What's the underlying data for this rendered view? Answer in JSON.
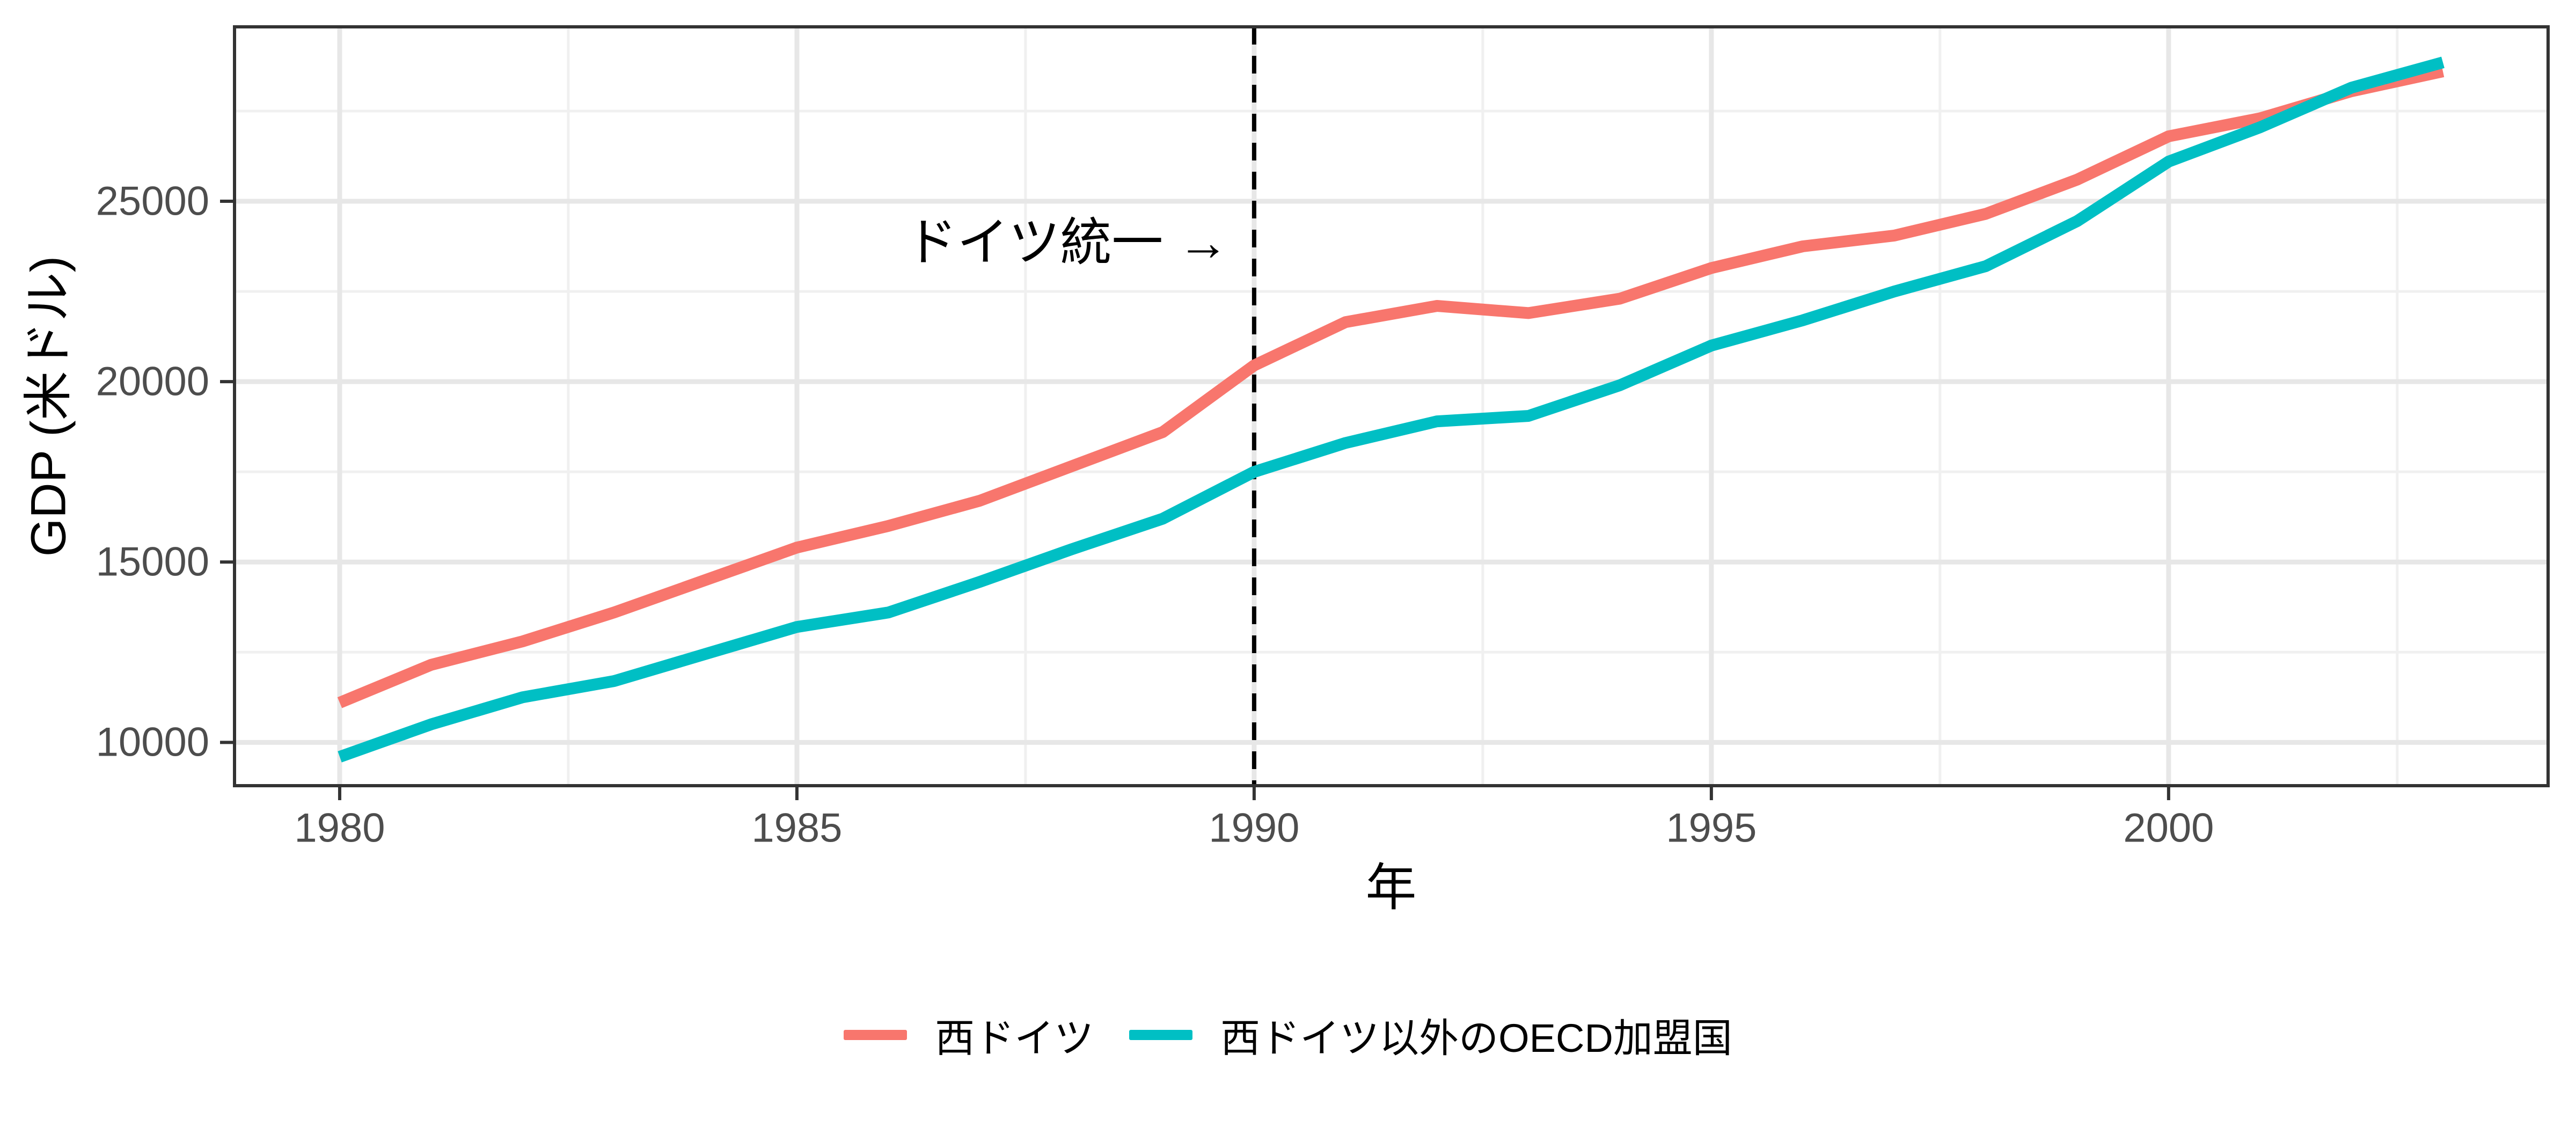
{
  "chart_data": {
    "type": "line",
    "title": "",
    "xlabel": "年",
    "ylabel": "GDP (米ドル)",
    "x": [
      1980,
      1981,
      1982,
      1983,
      1984,
      1985,
      1986,
      1987,
      1988,
      1989,
      1990,
      1991,
      1992,
      1993,
      1994,
      1995,
      1996,
      1997,
      1998,
      1999,
      2000,
      2001,
      2002,
      2003
    ],
    "series": [
      {
        "name": "西ドイツ",
        "color": "#F8766D",
        "values": [
          11100,
          12150,
          12800,
          13600,
          14500,
          15400,
          16000,
          16700,
          17650,
          18600,
          20450,
          21650,
          22100,
          21900,
          22300,
          23150,
          23750,
          24050,
          24650,
          25600,
          26800,
          27300,
          28050,
          28600
        ]
      },
      {
        "name": "西ドイツ以外のOECD加盟国",
        "color": "#00BFC4",
        "values": [
          9600,
          10500,
          11250,
          11700,
          12450,
          13200,
          13600,
          14450,
          15350,
          16200,
          17500,
          18300,
          18900,
          19050,
          19900,
          21000,
          21700,
          22500,
          23200,
          24450,
          26100,
          27050,
          28150,
          28850
        ]
      }
    ],
    "xlim": [
      1978.85,
      2004.15
    ],
    "ylim": [
      8800,
      29835
    ],
    "x_ticks_major": [
      1980,
      1985,
      1990,
      1995,
      2000
    ],
    "x_ticks_minor": [
      1982.5,
      1987.5,
      1992.5,
      1997.5,
      2002.5
    ],
    "y_ticks_major": [
      10000,
      15000,
      20000,
      25000
    ],
    "y_ticks_minor": [
      12500,
      17500,
      22500,
      27500
    ],
    "grid": "major+minor",
    "legend_position": "bottom",
    "vline": {
      "x": 1990,
      "style": "dashed",
      "color": "#000000"
    },
    "annotation": {
      "text": "ドイツ統一 →",
      "anchor_x": 1990,
      "y_value": 24000,
      "align": "right-of-text-at-vline"
    }
  },
  "axes": {
    "x_title": "年",
    "y_title": "GDP (米ドル)",
    "x_tick_labels": [
      "1980",
      "1985",
      "1990",
      "1995",
      "2000"
    ],
    "y_tick_labels": [
      "10000",
      "15000",
      "20000",
      "25000"
    ]
  },
  "annotation": {
    "label": "ドイツ統一 →"
  },
  "legend": {
    "items": [
      {
        "label": "西ドイツ",
        "color": "#F8766D"
      },
      {
        "label": "西ドイツ以外のOECD加盟国",
        "color": "#00BFC4"
      }
    ]
  },
  "colors": {
    "series_west_germany": "#F8766D",
    "series_other_oecd": "#00BFC4",
    "grid_major": "#E7E7E7",
    "grid_minor": "#F0F0F0",
    "panel_border": "#333333",
    "tick_mark": "#333333",
    "tick_text": "#4D4D4D",
    "vline": "#000000",
    "background": "#FFFFFF"
  }
}
